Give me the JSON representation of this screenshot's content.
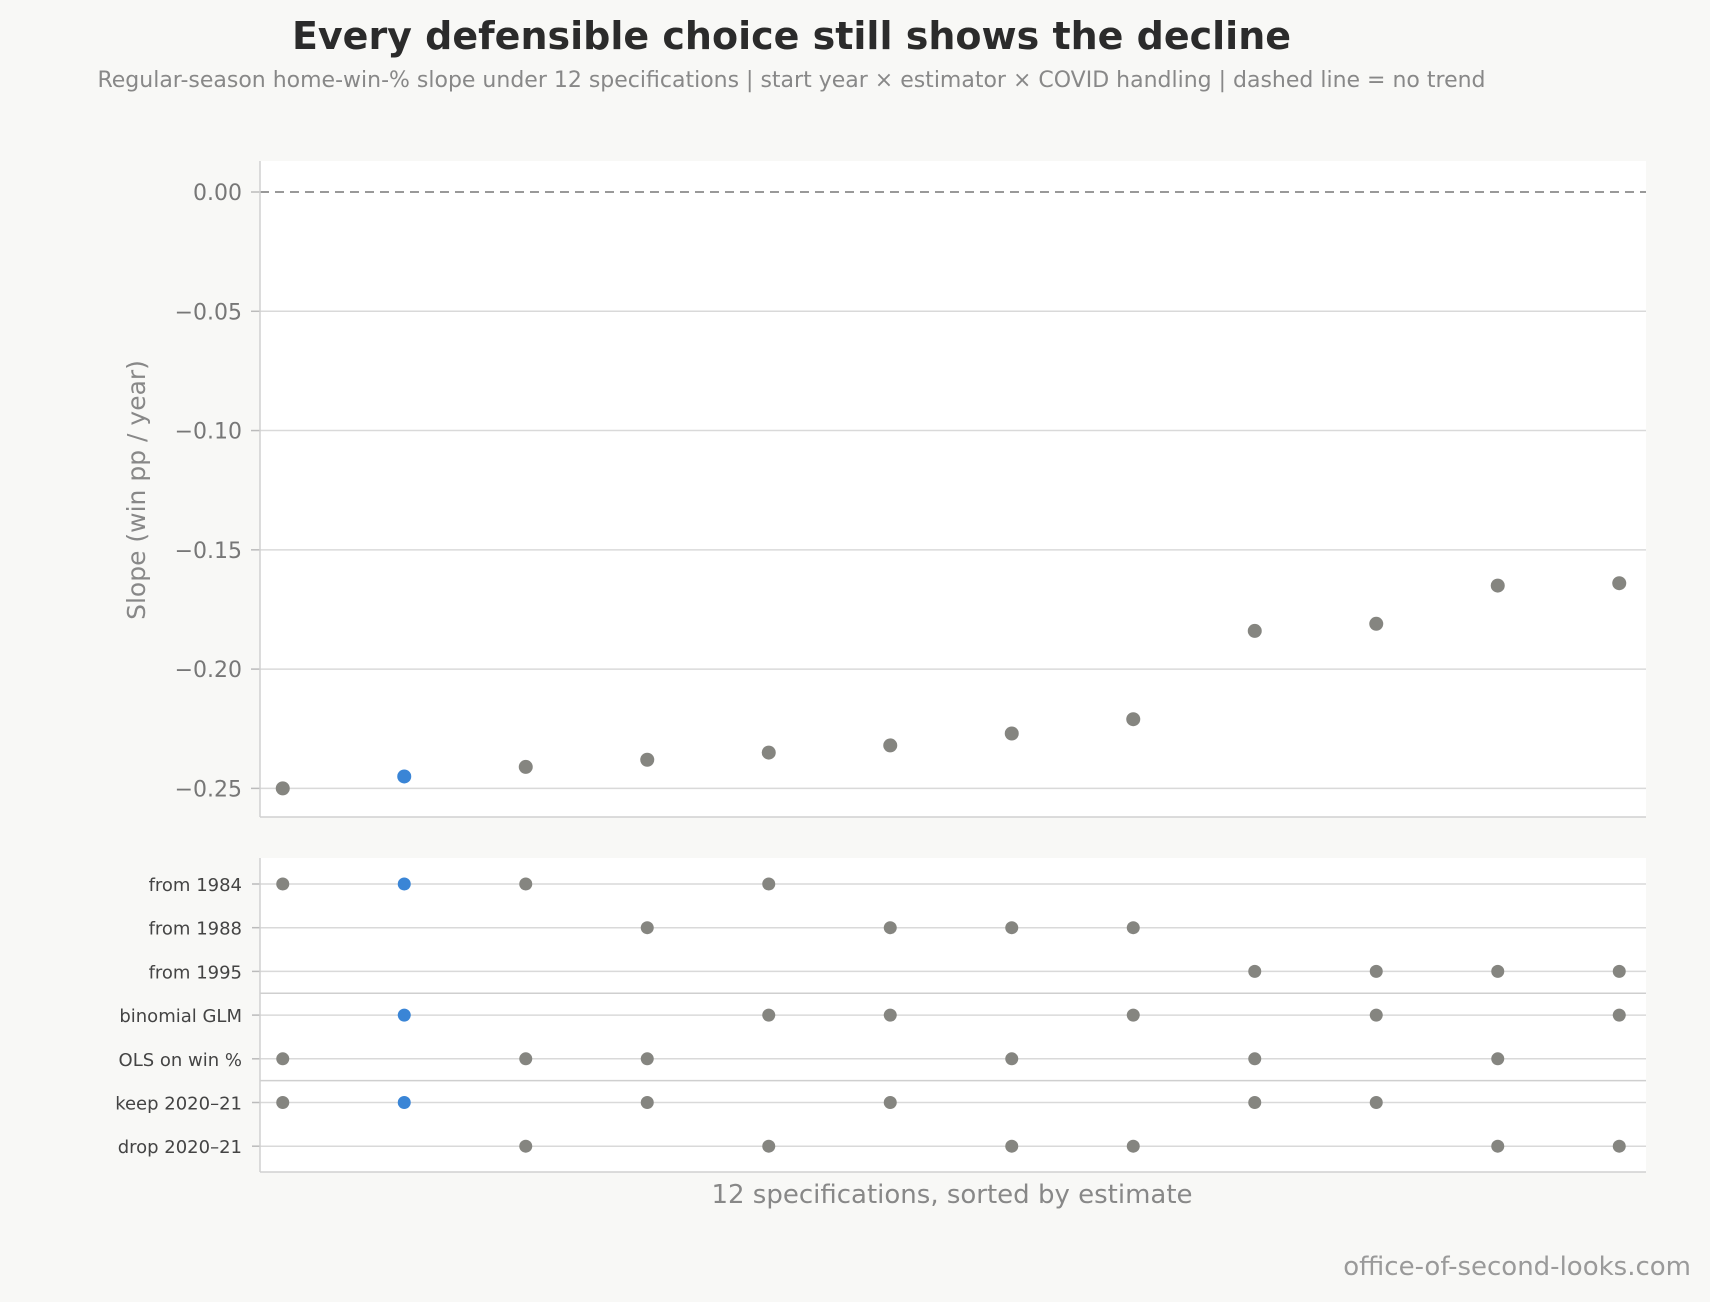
{
  "title": "Every defensible choice still shows the decline",
  "subtitle": "Regular-season home-win-% slope under 12 specifications  |  start year × estimator × COVID handling  |  dashed line = no trend",
  "credit": "office-of-second-looks.com",
  "colors": {
    "point": "#858580",
    "highlight": "#3a85d6",
    "grid": "#d9d9d9",
    "zero_line": "#999999"
  },
  "chart_data": {
    "type": "scatter",
    "ylabel": "Slope (win pp / year)",
    "xlabel": "12 specifications, sorted by estimate",
    "ylim": [
      -0.262,
      0.013
    ],
    "yticks": [
      0.0,
      -0.05,
      -0.1,
      -0.15,
      -0.2,
      -0.25
    ],
    "ytick_labels": [
      "0.00",
      "−0.05",
      "−0.10",
      "−0.15",
      "−0.20",
      "−0.25"
    ],
    "reference_line": 0.0,
    "grid": true,
    "highlight_index": 1,
    "specifications": [
      {
        "rank": 1,
        "slope": -0.25,
        "start": "from 1984",
        "estimator": "OLS on win %",
        "covid": "keep 2020–21"
      },
      {
        "rank": 2,
        "slope": -0.245,
        "start": "from 1984",
        "estimator": "binomial GLM",
        "covid": "keep 2020–21"
      },
      {
        "rank": 3,
        "slope": -0.241,
        "start": "from 1984",
        "estimator": "OLS on win %",
        "covid": "drop 2020–21"
      },
      {
        "rank": 4,
        "slope": -0.238,
        "start": "from 1988",
        "estimator": "OLS on win %",
        "covid": "keep 2020–21"
      },
      {
        "rank": 5,
        "slope": -0.235,
        "start": "from 1984",
        "estimator": "binomial GLM",
        "covid": "drop 2020–21"
      },
      {
        "rank": 6,
        "slope": -0.232,
        "start": "from 1988",
        "estimator": "binomial GLM",
        "covid": "keep 2020–21"
      },
      {
        "rank": 7,
        "slope": -0.227,
        "start": "from 1988",
        "estimator": "OLS on win %",
        "covid": "drop 2020–21"
      },
      {
        "rank": 8,
        "slope": -0.221,
        "start": "from 1988",
        "estimator": "binomial GLM",
        "covid": "drop 2020–21"
      },
      {
        "rank": 9,
        "slope": -0.184,
        "start": "from 1995",
        "estimator": "OLS on win %",
        "covid": "keep 2020–21"
      },
      {
        "rank": 10,
        "slope": -0.181,
        "start": "from 1995",
        "estimator": "binomial GLM",
        "covid": "keep 2020–21"
      },
      {
        "rank": 11,
        "slope": -0.165,
        "start": "from 1995",
        "estimator": "OLS on win %",
        "covid": "drop 2020–21"
      },
      {
        "rank": 12,
        "slope": -0.164,
        "start": "from 1995",
        "estimator": "binomial GLM",
        "covid": "drop 2020–21"
      }
    ],
    "indicator_rows": [
      "from 1984",
      "from 1988",
      "from 1995",
      "binomial GLM",
      "OLS on win %",
      "keep 2020–21",
      "drop 2020–21"
    ],
    "indicator_groups": [
      {
        "rows": [
          "from 1984",
          "from 1988",
          "from 1995"
        ]
      },
      {
        "rows": [
          "binomial GLM",
          "OLS on win %"
        ]
      },
      {
        "rows": [
          "keep 2020–21",
          "drop 2020–21"
        ]
      }
    ]
  }
}
